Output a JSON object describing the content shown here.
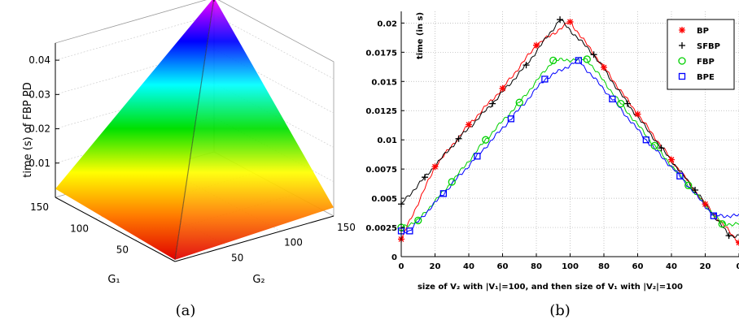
{
  "chart_data": [
    {
      "type": "surface",
      "panel_caption": "(a)",
      "zlabel": "time (s) of FBP PD",
      "xlabel": "G₁",
      "ylabel": "G₂",
      "x_ticks": [
        "50",
        "100",
        "150"
      ],
      "y_ticks": [
        "50",
        "100",
        "150"
      ],
      "z_ticks": [
        "0.01",
        "0.02",
        "0.03",
        "0.04"
      ],
      "x_range": [
        0,
        150
      ],
      "y_range": [
        0,
        150
      ],
      "z_range": [
        0,
        0.045
      ],
      "peak": {
        "G1": 150,
        "G2": 150,
        "time": 0.045
      },
      "colormap": [
        "#e00000",
        "#ff7a00",
        "#ffff00",
        "#00e000",
        "#00ffff",
        "#0000ff",
        "#ff00ff"
      ]
    },
    {
      "type": "line",
      "panel_caption": "(b)",
      "xlabel": "size of V₂ with |V₁|=100, and then size of V₁ with |V₂|=100",
      "ylabel": "time (in s)",
      "x_tick_labels": [
        "0",
        "20",
        "40",
        "60",
        "80",
        "100",
        "80",
        "60",
        "40",
        "20",
        "0"
      ],
      "y_ticks": [
        0,
        0.0025,
        0.005,
        0.0075,
        0.01,
        0.0125,
        0.015,
        0.0175,
        0.02
      ],
      "y_tick_labels": [
        "0",
        "0.0025",
        "0.005",
        "0.0075",
        "0.01",
        "0.0125",
        "0.015",
        "0.0175",
        "0.02"
      ],
      "ylim": [
        0,
        0.021
      ],
      "xlim": [
        0,
        200
      ],
      "grid": true,
      "legend_position": "top-right",
      "series": [
        {
          "name": "BP",
          "color": "#ff0000",
          "marker": "asterisk",
          "points": [
            [
              0,
              0.0015
            ],
            [
              20,
              0.0077
            ],
            [
              40,
              0.0113
            ],
            [
              60,
              0.0144
            ],
            [
              80,
              0.0181
            ],
            [
              100,
              0.0201
            ],
            [
              120,
              0.0162
            ],
            [
              140,
              0.0122
            ],
            [
              160,
              0.0083
            ],
            [
              180,
              0.0045
            ],
            [
              200,
              0.0012
            ]
          ]
        },
        {
          "name": "SFBP",
          "color": "#000000",
          "marker": "plus",
          "points": [
            [
              0,
              0.0045
            ],
            [
              14,
              0.0068
            ],
            [
              34,
              0.0101
            ],
            [
              54,
              0.0131
            ],
            [
              74,
              0.0164
            ],
            [
              94,
              0.0203
            ],
            [
              114,
              0.0173
            ],
            [
              134,
              0.0131
            ],
            [
              154,
              0.0093
            ],
            [
              174,
              0.0057
            ],
            [
              194,
              0.0018
            ]
          ]
        },
        {
          "name": "FBP",
          "color": "#00d000",
          "marker": "circle",
          "points": [
            [
              0,
              0.0025
            ],
            [
              10,
              0.0031
            ],
            [
              30,
              0.0064
            ],
            [
              50,
              0.01
            ],
            [
              70,
              0.0132
            ],
            [
              90,
              0.0168
            ],
            [
              110,
              0.0169
            ],
            [
              130,
              0.0131
            ],
            [
              150,
              0.0095
            ],
            [
              170,
              0.0061
            ],
            [
              190,
              0.0028
            ]
          ]
        },
        {
          "name": "BPE",
          "color": "#0000ff",
          "marker": "square",
          "points": [
            [
              0,
              0.0022
            ],
            [
              5,
              0.0022
            ],
            [
              25,
              0.0054
            ],
            [
              45,
              0.0086
            ],
            [
              65,
              0.0118
            ],
            [
              85,
              0.0152
            ],
            [
              105,
              0.0168
            ],
            [
              125,
              0.0135
            ],
            [
              145,
              0.01
            ],
            [
              165,
              0.0069
            ],
            [
              185,
              0.0035
            ]
          ]
        }
      ]
    }
  ]
}
